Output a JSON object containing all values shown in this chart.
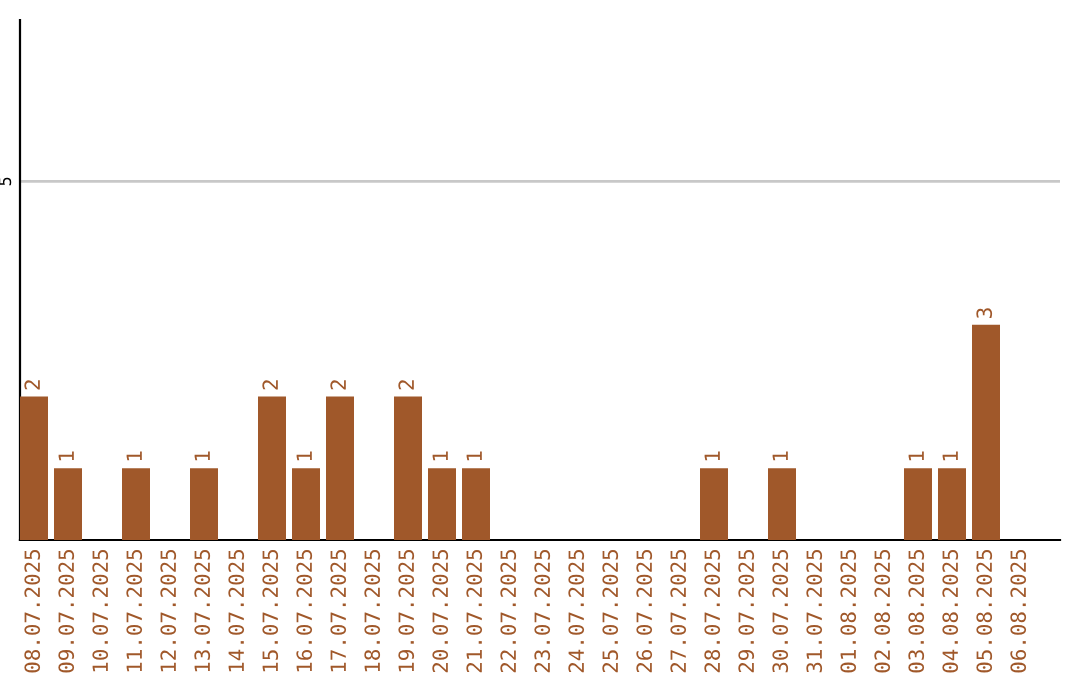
{
  "chart_data": {
    "type": "bar",
    "categories": [
      "08.07.2025",
      "09.07.2025",
      "10.07.2025",
      "11.07.2025",
      "12.07.2025",
      "13.07.2025",
      "14.07.2025",
      "15.07.2025",
      "16.07.2025",
      "17.07.2025",
      "18.07.2025",
      "19.07.2025",
      "20.07.2025",
      "21.07.2025",
      "22.07.2025",
      "23.07.2025",
      "24.07.2025",
      "25.07.2025",
      "26.07.2025",
      "27.07.2025",
      "28.07.2025",
      "29.07.2025",
      "30.07.2025",
      "31.07.2025",
      "01.08.2025",
      "02.08.2025",
      "03.08.2025",
      "04.08.2025",
      "05.08.2025",
      "06.08.2025"
    ],
    "values": [
      2,
      1,
      0,
      1,
      0,
      1,
      0,
      2,
      1,
      2,
      0,
      2,
      1,
      1,
      0,
      0,
      0,
      0,
      0,
      0,
      1,
      0,
      1,
      0,
      0,
      0,
      1,
      1,
      3,
      0
    ],
    "value_labels": [
      "2",
      "1",
      null,
      "1",
      null,
      "1",
      null,
      "2",
      "1",
      "2",
      null,
      "2",
      "1",
      "1",
      null,
      null,
      null,
      null,
      null,
      null,
      "1",
      null,
      "1",
      null,
      null,
      null,
      "1",
      "1",
      "3",
      null
    ],
    "color": "#a0582a",
    "ylim": [
      0,
      7.25
    ],
    "yticks": [
      5
    ],
    "grid": "y"
  }
}
